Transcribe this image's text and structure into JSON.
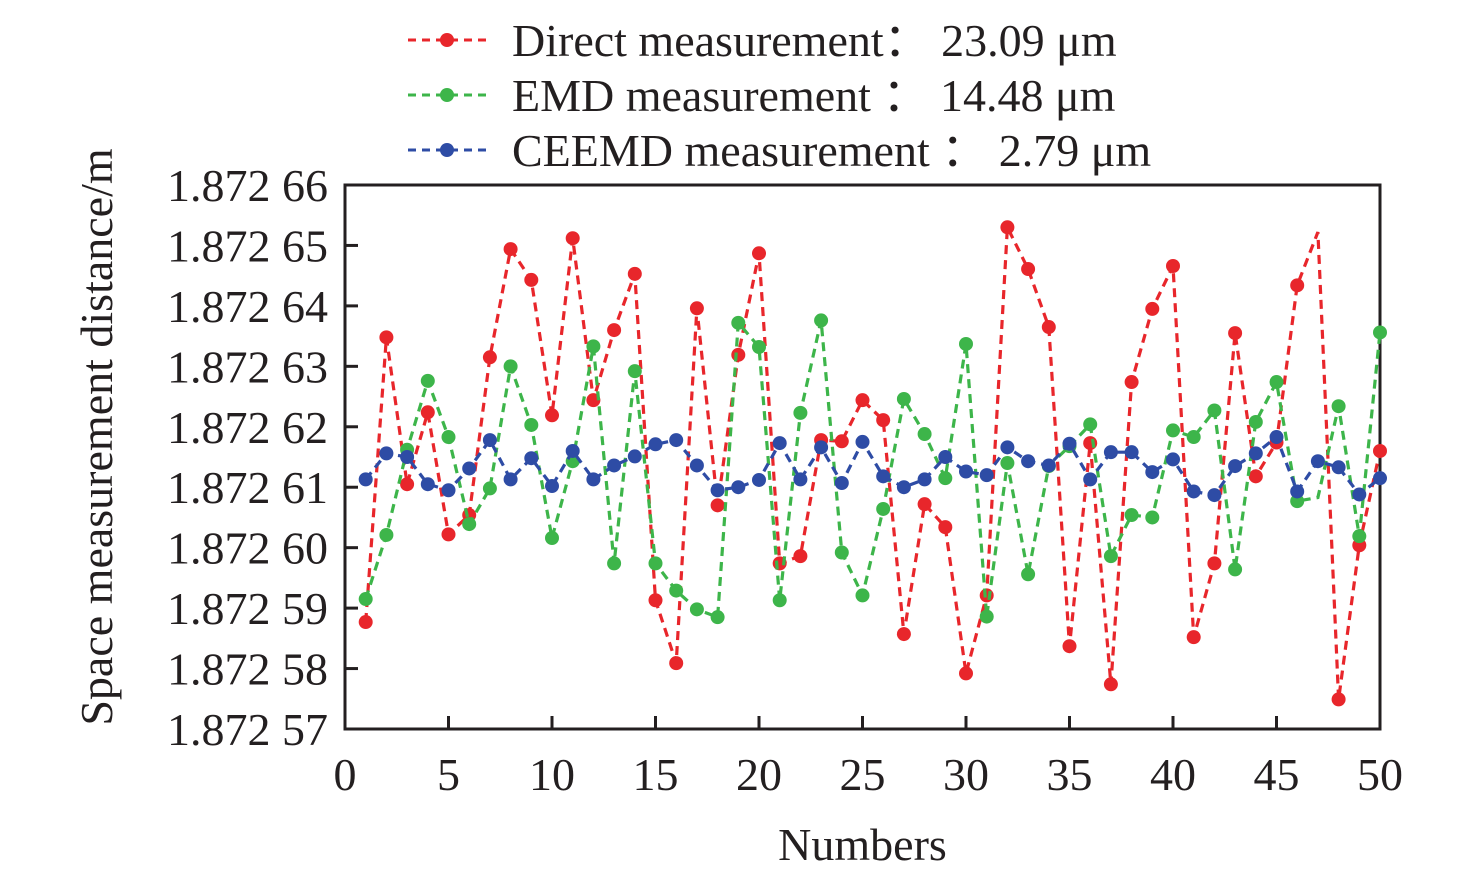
{
  "chart_data": {
    "type": "line",
    "title": "",
    "xlabel": "Numbers",
    "ylabel": "Space measurement distance/m",
    "xlim": [
      0,
      50
    ],
    "ylim": [
      57,
      66
    ],
    "xticks": [
      0,
      5,
      10,
      15,
      20,
      25,
      30,
      35,
      40,
      45,
      50
    ],
    "xtick_labels": [
      "0",
      "5",
      "10",
      "15",
      "20",
      "25",
      "30",
      "35",
      "40",
      "45",
      "50"
    ],
    "yticks": [
      57,
      58,
      59,
      60,
      61,
      62,
      63,
      64,
      65,
      66
    ],
    "ytick_labels": [
      "1.872 57",
      "1.872 58",
      "1.872 59",
      "1.872 60",
      "1.872 61",
      "1.872 62",
      "1.872 63",
      "1.872 64",
      "1.872 65",
      "1.872 66"
    ],
    "y_value_note": "y values are in units of 1e-5 m offset: value v means 1.872 v (e.g. 61.5 = 1.872615 m)",
    "grid": false,
    "legend_position": "top",
    "x": [
      1,
      2,
      3,
      4,
      5,
      6,
      7,
      8,
      9,
      10,
      11,
      12,
      13,
      14,
      15,
      16,
      17,
      18,
      19,
      20,
      21,
      22,
      23,
      24,
      25,
      26,
      27,
      28,
      29,
      30,
      31,
      32,
      33,
      34,
      35,
      36,
      37,
      38,
      39,
      40,
      41,
      42,
      43,
      44,
      45,
      46,
      47,
      48,
      49,
      50
    ],
    "series": [
      {
        "name": "Direct measurement",
        "legend_label": "Direct measurement：  23.09 μm",
        "color": "#e8262b",
        "line_style": "dashed",
        "marker": "circle",
        "unmarked_points": [
          47
        ],
        "values": [
          58.77,
          63.48,
          61.05,
          62.24,
          60.22,
          60.54,
          63.15,
          64.94,
          64.43,
          62.19,
          65.12,
          62.44,
          63.6,
          64.53,
          59.13,
          58.09,
          63.96,
          60.7,
          63.19,
          64.87,
          59.74,
          59.86,
          61.78,
          61.76,
          62.44,
          62.11,
          58.57,
          60.72,
          60.34,
          57.92,
          59.21,
          65.3,
          64.61,
          63.65,
          58.37,
          61.73,
          57.74,
          62.74,
          63.95,
          64.66,
          58.52,
          59.74,
          63.55,
          61.18,
          61.74,
          64.34,
          65.22,
          57.49,
          60.04,
          61.6
        ]
      },
      {
        "name": "EMD measurement",
        "legend_label": "EMD measurement ：  14.48 μm",
        "color": "#3db54a",
        "line_style": "dashed",
        "marker": "circle",
        "unmarked_points": [
          47
        ],
        "values": [
          59.15,
          60.21,
          61.62,
          62.76,
          61.83,
          60.39,
          60.98,
          63.0,
          62.03,
          60.16,
          61.43,
          63.33,
          59.74,
          62.92,
          59.74,
          59.29,
          58.98,
          58.85,
          63.72,
          63.32,
          59.13,
          62.23,
          63.76,
          59.92,
          59.21,
          60.64,
          62.46,
          61.88,
          61.15,
          63.37,
          58.86,
          61.4,
          59.56,
          61.35,
          61.68,
          62.04,
          59.86,
          60.54,
          60.5,
          61.94,
          61.83,
          62.27,
          59.64,
          62.08,
          62.74,
          60.77,
          60.83,
          62.34,
          60.19,
          63.56
        ]
      },
      {
        "name": "CEEMD measurement",
        "legend_label": "CEEMD measurement ：  2.79 μm",
        "color": "#2e4ca5",
        "line_style": "dashed",
        "marker": "circle",
        "unmarked_points": [],
        "values": [
          61.13,
          61.56,
          61.5,
          61.05,
          60.95,
          61.31,
          61.78,
          61.13,
          61.48,
          61.02,
          61.6,
          61.13,
          61.36,
          61.51,
          61.71,
          61.78,
          61.36,
          60.95,
          61.0,
          61.12,
          61.73,
          61.13,
          61.66,
          61.07,
          61.75,
          61.18,
          61.0,
          61.13,
          61.5,
          61.26,
          61.2,
          61.66,
          61.43,
          61.36,
          61.72,
          61.13,
          61.58,
          61.58,
          61.25,
          61.46,
          60.93,
          60.87,
          61.35,
          61.56,
          61.83,
          60.93,
          61.43,
          61.33,
          60.88,
          61.15
        ]
      }
    ]
  }
}
